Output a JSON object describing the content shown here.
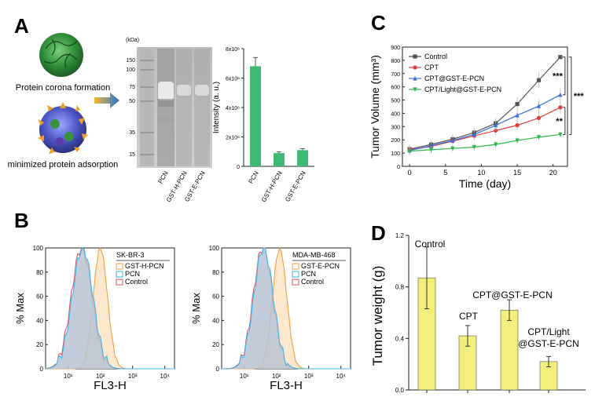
{
  "panel_letters": {
    "a": "A",
    "b": "B",
    "c": "C",
    "d": "D"
  },
  "panel_a": {
    "label_top": "Protein corona formation",
    "label_bottom": "minimized protein adsorption",
    "gel": {
      "unit": "(kDa)",
      "markers": [
        "150",
        "100",
        "75",
        "50",
        "35",
        "15"
      ],
      "lanes": [
        "PCN",
        "GST-H-PCN",
        "GST-E-PCN"
      ]
    },
    "colors": {
      "bar": "#3dbb74",
      "arrow": "#f0a020"
    }
  },
  "chart_data": [
    {
      "id": "A-bar",
      "type": "bar",
      "ylabel": "Intensity (a. u.)",
      "ylim": [
        0,
        8000000
      ],
      "ytick_labels": [
        "0",
        "2x10⁶",
        "4x10⁶",
        "6x10⁶",
        "8x10⁶"
      ],
      "categories": [
        "PCN",
        "GST-H-PCN",
        "GST-E-PCN"
      ],
      "values": [
        6800000,
        900000,
        1100000
      ],
      "errors": [
        600000,
        80000,
        100000
      ],
      "color": "#3dbb74"
    },
    {
      "id": "C",
      "type": "line",
      "xlabel": "Time (day)",
      "ylabel": "Tumor Volume (mm³)",
      "xlim": [
        -1,
        22
      ],
      "ylim": [
        0,
        900
      ],
      "xticks": [
        0,
        5,
        10,
        15,
        20
      ],
      "yticks": [
        0,
        100,
        200,
        300,
        400,
        500,
        600,
        700,
        800,
        900
      ],
      "x": [
        0,
        3,
        6,
        9,
        12,
        15,
        18,
        21
      ],
      "series": [
        {
          "name": "Control",
          "color": "#555555",
          "marker": "square",
          "values": [
            130,
            165,
            205,
            255,
            325,
            470,
            650,
            825
          ],
          "errors": [
            40,
            35,
            35,
            35,
            40,
            50,
            60,
            10
          ]
        },
        {
          "name": "CPT",
          "color": "#e03c3c",
          "marker": "circle",
          "values": [
            125,
            150,
            190,
            230,
            270,
            310,
            365,
            445
          ],
          "errors": [
            35,
            30,
            30,
            35,
            35,
            40,
            45,
            45
          ]
        },
        {
          "name": "CPT@GST-E-PCN",
          "color": "#3a6fd8",
          "marker": "triangle-up",
          "values": [
            120,
            155,
            195,
            240,
            310,
            385,
            455,
            540
          ],
          "errors": [
            35,
            30,
            30,
            35,
            40,
            45,
            50,
            50
          ]
        },
        {
          "name": "CPT/Light@GST-E-PCN",
          "color": "#2cb84a",
          "marker": "triangle-down",
          "values": [
            115,
            125,
            135,
            145,
            165,
            195,
            220,
            240
          ],
          "errors": [
            30,
            25,
            25,
            25,
            25,
            25,
            20,
            20
          ]
        }
      ],
      "significance": [
        "***",
        "**",
        "***"
      ]
    },
    {
      "id": "B-left",
      "type": "histogram",
      "xlabel": "FL3-H",
      "ylabel": "% Max",
      "xscale": "log",
      "xtick_labels": [
        "10¹",
        "10²",
        "10³",
        "10⁴"
      ],
      "ytick_labels": [
        "0",
        "20",
        "40",
        "60",
        "80",
        "100"
      ],
      "legend_title": "SK-BR-3",
      "series": [
        {
          "name": "GST-H-PCN",
          "color": "#f0a040",
          "peak_log10": 2.0,
          "width": 0.22
        },
        {
          "name": "PCN",
          "color": "#3fb8e8",
          "peak_log10": 1.45,
          "width": 0.32
        },
        {
          "name": "Control",
          "color": "#e05060",
          "peak_log10": 1.42,
          "width": 0.32
        }
      ]
    },
    {
      "id": "B-right",
      "type": "histogram",
      "xlabel": "FL3-H",
      "ylabel": "% Max",
      "xscale": "log",
      "xtick_labels": [
        "10¹",
        "10²",
        "10³",
        "10⁴"
      ],
      "ytick_labels": [
        "0",
        "20",
        "40",
        "60",
        "80",
        "100"
      ],
      "legend_title": "MDA-MB-468",
      "series": [
        {
          "name": "GST-E-PCN",
          "color": "#f0a040",
          "peak_log10": 2.1,
          "width": 0.22
        },
        {
          "name": "PCN",
          "color": "#3fb8e8",
          "peak_log10": 1.6,
          "width": 0.3
        },
        {
          "name": "Control",
          "color": "#e05060",
          "peak_log10": 1.58,
          "width": 0.3
        }
      ]
    },
    {
      "id": "D",
      "type": "bar",
      "ylabel": "Tumor weight (g)",
      "ylim": [
        0,
        1.2
      ],
      "yticks": [
        0.0,
        0.4,
        0.8,
        1.2
      ],
      "ytick_labels": [
        "0.0",
        "0.4",
        "0.8",
        "1.2"
      ],
      "categories": [
        "Control",
        "CPT",
        "CPT@GST-E-PCN",
        "CPT/Light@GST-E-PCN"
      ],
      "category_labels": [
        [
          "Control"
        ],
        [
          "CPT"
        ],
        [
          "CPT@GST-E-PCN"
        ],
        [
          "CPT/Light",
          "@GST-E-PCN"
        ]
      ],
      "values": [
        0.87,
        0.42,
        0.62,
        0.22
      ],
      "errors": [
        0.24,
        0.08,
        0.08,
        0.04
      ],
      "color": "#f2ef7c"
    }
  ]
}
